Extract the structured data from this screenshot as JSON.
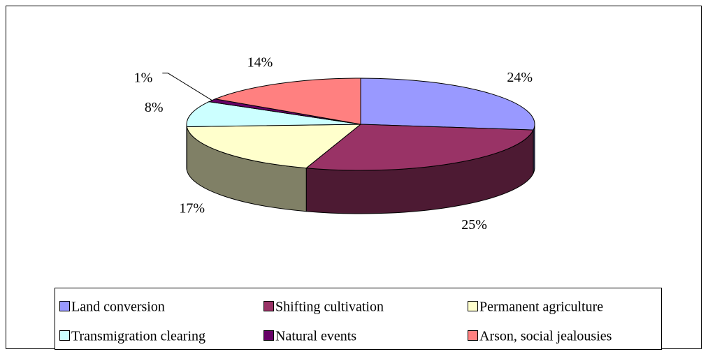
{
  "chart_data": {
    "type": "pie3d",
    "categories": [
      "Land conversion",
      "Shifting cultivation",
      "Permanent agriculture",
      "Transmigration clearing",
      "Natural events",
      "Arson, social jealousies"
    ],
    "values": [
      24,
      25,
      17,
      8,
      1,
      14
    ],
    "value_labels": [
      "24%",
      "25%",
      "17%",
      "8%",
      "1%",
      "14%"
    ],
    "colors": [
      "#9999ff",
      "#993366",
      "#ffffcc",
      "#ccffff",
      "#660066",
      "#ff8080"
    ],
    "legend": "bottom"
  }
}
